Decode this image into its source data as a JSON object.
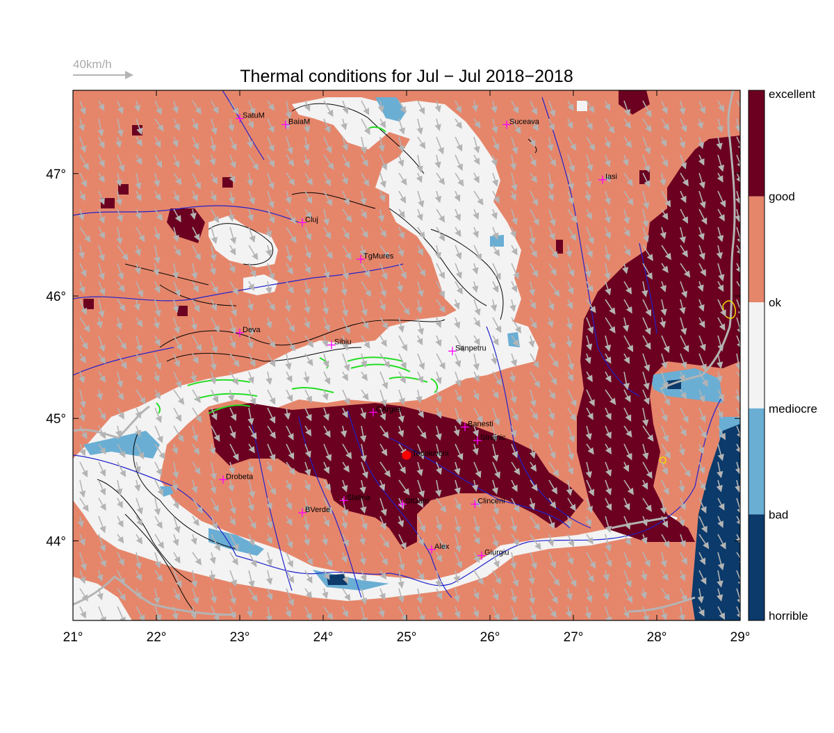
{
  "title": "Thermal conditions for Jul − Jul  2018−2018",
  "wind_reference": {
    "label": "40km/h"
  },
  "axes": {
    "x_ticks": [
      "21°",
      "22°",
      "23°",
      "24°",
      "25°",
      "26°",
      "27°",
      "28°",
      "29°"
    ],
    "y_ticks": [
      "44°",
      "45°",
      "46°",
      "47°"
    ],
    "lon_range": [
      21,
      29
    ],
    "lat_range": [
      43.35,
      47.68
    ]
  },
  "colorbar": {
    "labels": [
      "excellent",
      "good",
      "ok",
      "mediocre",
      "bad",
      "horrible"
    ],
    "colors": [
      "#6b0020",
      "#e5866b",
      "#f3f3f3",
      "#6aaed4",
      "#0b3a6b"
    ]
  },
  "colors": {
    "good": "#e5866b",
    "excellent": "#6b0020",
    "ok": "#f3f3f3",
    "bad": "#6aaed4",
    "horrible": "#0b3a6b",
    "river": "#2222cc",
    "city_marker": "#ff00ff",
    "highlight_marker": "#ff0000",
    "wind_arrow": "#b4b4b4"
  },
  "cities": [
    {
      "name": "SatuM",
      "lon": 23.0,
      "lat": 47.45
    },
    {
      "name": "BaiaM",
      "lon": 23.55,
      "lat": 47.4
    },
    {
      "name": "Suceava",
      "lon": 26.2,
      "lat": 47.4
    },
    {
      "name": "Iasi",
      "lon": 27.35,
      "lat": 46.95
    },
    {
      "name": "Cluj",
      "lon": 23.75,
      "lat": 46.6
    },
    {
      "name": "TgMures",
      "lon": 24.45,
      "lat": 46.3
    },
    {
      "name": "Deva",
      "lon": 23.0,
      "lat": 45.7
    },
    {
      "name": "Sibiu",
      "lon": 24.1,
      "lat": 45.6
    },
    {
      "name": "Sanpetru",
      "lon": 25.55,
      "lat": 45.55
    },
    {
      "name": "CArges",
      "lon": 24.6,
      "lat": 45.05
    },
    {
      "name": "Banesti",
      "lon": 25.7,
      "lat": 44.93
    },
    {
      "name": "Strejnic",
      "lon": 25.85,
      "lat": 44.82
    },
    {
      "name": "Drobeta",
      "lon": 22.8,
      "lat": 44.5
    },
    {
      "name": "Slatina",
      "lon": 24.25,
      "lat": 44.33
    },
    {
      "name": "StGum",
      "lon": 24.95,
      "lat": 44.3
    },
    {
      "name": "Clinceni",
      "lon": 25.82,
      "lat": 44.3
    },
    {
      "name": "BVerde",
      "lon": 23.75,
      "lat": 44.23
    },
    {
      "name": "Alex",
      "lon": 25.3,
      "lat": 43.93
    },
    {
      "name": "Giurgiu",
      "lon": 25.9,
      "lat": 43.88
    }
  ],
  "highlight": {
    "name": "Topoloveni",
    "lon": 25.0,
    "lat": 44.7
  }
}
